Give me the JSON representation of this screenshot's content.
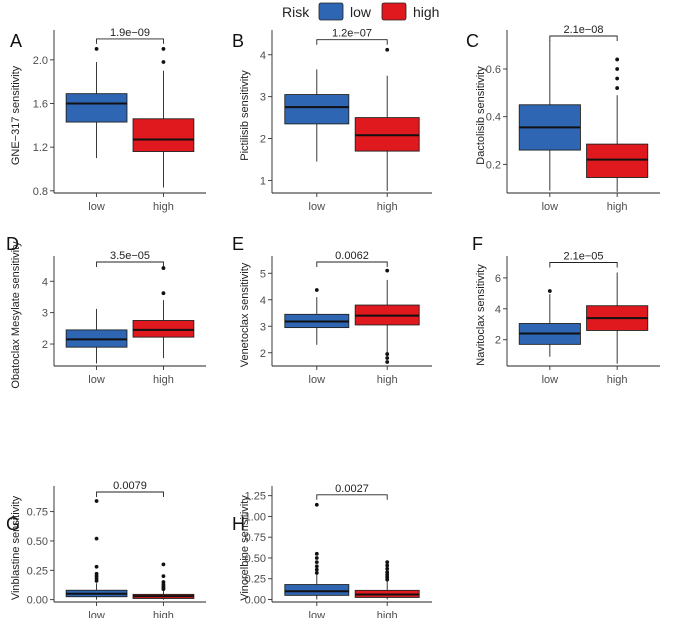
{
  "legend": {
    "title": "Risk",
    "items": [
      {
        "label": "low",
        "color": "#2f66b3"
      },
      {
        "label": "high",
        "color": "#e0191e"
      }
    ]
  },
  "chart_data": [
    {
      "type": "box",
      "letter": "A",
      "ylabel": "GNE−317 sensitivity",
      "categories": [
        "low",
        "high"
      ],
      "ylim": [
        0.78,
        2.2
      ],
      "yticks": [
        0.8,
        1.2,
        1.6,
        2.0
      ],
      "ytick_labels": [
        "0.8",
        "1.2",
        "1.6",
        "2.0"
      ],
      "pvalue": "1.9e−09",
      "boxes": [
        {
          "q1": 1.43,
          "median": 1.6,
          "q3": 1.69,
          "whisker_low": 1.1,
          "whisker_high": 1.98,
          "outliers": [
            2.1
          ]
        },
        {
          "q1": 1.16,
          "median": 1.27,
          "q3": 1.46,
          "whisker_low": 0.83,
          "whisker_high": 1.9,
          "outliers": [
            1.98,
            2.1
          ]
        }
      ]
    },
    {
      "type": "box",
      "letter": "B",
      "ylabel": "Pictilisib sensitivity",
      "categories": [
        "low",
        "high"
      ],
      "ylim": [
        0.7,
        4.4
      ],
      "yticks": [
        1,
        2,
        3,
        4
      ],
      "ytick_labels": [
        "1",
        "2",
        "3",
        "4"
      ],
      "pvalue": "1.2e−07",
      "boxes": [
        {
          "q1": 2.35,
          "median": 2.75,
          "q3": 3.05,
          "whisker_low": 1.45,
          "whisker_high": 3.65,
          "outliers": []
        },
        {
          "q1": 1.7,
          "median": 2.08,
          "q3": 2.5,
          "whisker_low": 0.75,
          "whisker_high": 3.5,
          "outliers": [
            4.12
          ]
        }
      ]
    },
    {
      "type": "box",
      "letter": "C",
      "ylabel": "Dactolisib sensitivity",
      "categories": [
        "low",
        "high"
      ],
      "ylim": [
        0.08,
        0.73
      ],
      "yticks": [
        0.2,
        0.4,
        0.6
      ],
      "ytick_labels": [
        "0.2",
        "0.4",
        "0.6"
      ],
      "pvalue": "2.1e−08",
      "boxes": [
        {
          "q1": 0.26,
          "median": 0.355,
          "q3": 0.45,
          "whisker_low": 0.09,
          "whisker_high": 0.72,
          "outliers": []
        },
        {
          "q1": 0.145,
          "median": 0.22,
          "q3": 0.285,
          "whisker_low": 0.085,
          "whisker_high": 0.49,
          "outliers": [
            0.52,
            0.56,
            0.6,
            0.64
          ]
        }
      ]
    },
    {
      "type": "box",
      "letter": "D",
      "ylabel": "Obatoclax Mesylate sensitivity",
      "categories": [
        "low",
        "high"
      ],
      "ylim": [
        1.3,
        4.55
      ],
      "yticks": [
        2,
        3,
        4
      ],
      "ytick_labels": [
        "2",
        "3",
        "4"
      ],
      "pvalue": "3.5e−05",
      "boxes": [
        {
          "q1": 1.9,
          "median": 2.15,
          "q3": 2.45,
          "whisker_low": 1.38,
          "whisker_high": 3.12,
          "outliers": []
        },
        {
          "q1": 2.22,
          "median": 2.45,
          "q3": 2.75,
          "whisker_low": 1.55,
          "whisker_high": 3.4,
          "outliers": [
            3.62,
            4.42
          ]
        }
      ]
    },
    {
      "type": "box",
      "letter": "E",
      "ylabel": "Venetoclax sensitivity",
      "categories": [
        "low",
        "high"
      ],
      "ylim": [
        1.5,
        5.35
      ],
      "yticks": [
        2,
        3,
        4,
        5
      ],
      "ytick_labels": [
        "2",
        "3",
        "4",
        "5"
      ],
      "pvalue": "0.0062",
      "boxes": [
        {
          "q1": 2.95,
          "median": 3.18,
          "q3": 3.45,
          "whisker_low": 2.3,
          "whisker_high": 4.1,
          "outliers": [
            4.37
          ]
        },
        {
          "q1": 3.05,
          "median": 3.4,
          "q3": 3.8,
          "whisker_low": 2.0,
          "whisker_high": 4.75,
          "outliers": [
            5.1,
            1.65,
            1.8,
            1.95
          ]
        }
      ]
    },
    {
      "type": "box",
      "letter": "F",
      "ylabel": "Navitoclax sensitivity",
      "categories": [
        "low",
        "high"
      ],
      "ylim": [
        0.3,
        6.9
      ],
      "yticks": [
        2,
        4,
        6
      ],
      "ytick_labels": [
        "2",
        "4",
        "6"
      ],
      "pvalue": "2.1e−05",
      "boxes": [
        {
          "q1": 1.7,
          "median": 2.4,
          "q3": 3.05,
          "whisker_low": 0.9,
          "whisker_high": 4.95,
          "outliers": [
            5.15
          ]
        },
        {
          "q1": 2.6,
          "median": 3.4,
          "q3": 4.2,
          "whisker_low": 0.45,
          "whisker_high": 6.35,
          "outliers": []
        }
      ]
    },
    {
      "type": "box",
      "letter": "G",
      "ylabel": "Vinblastine sensitivity",
      "categories": [
        "low",
        "high"
      ],
      "ylim": [
        -0.02,
        0.9
      ],
      "yticks": [
        0.0,
        0.25,
        0.5,
        0.75
      ],
      "ytick_labels": [
        "0.00",
        "0.25",
        "0.50",
        "0.75"
      ],
      "pvalue": "0.0079",
      "boxes": [
        {
          "q1": 0.025,
          "median": 0.05,
          "q3": 0.08,
          "whisker_low": 0.0,
          "whisker_high": 0.14,
          "outliers": [
            0.16,
            0.18,
            0.2,
            0.22,
            0.28,
            0.52,
            0.84
          ]
        },
        {
          "q1": 0.01,
          "median": 0.03,
          "q3": 0.045,
          "whisker_low": 0.0,
          "whisker_high": 0.08,
          "outliers": [
            0.09,
            0.1,
            0.115,
            0.13,
            0.15,
            0.2,
            0.3
          ]
        }
      ]
    },
    {
      "type": "box",
      "letter": "H",
      "ylabel": "Vinorelbine sensitivity",
      "categories": [
        "low",
        "high"
      ],
      "ylim": [
        -0.03,
        1.27
      ],
      "yticks": [
        0.0,
        0.25,
        0.5,
        0.75,
        1.0,
        1.25
      ],
      "ytick_labels": [
        "0.00",
        "0.25",
        "0.50",
        "0.75",
        "1.00",
        "1.25"
      ],
      "pvalue": "0.0027",
      "boxes": [
        {
          "q1": 0.05,
          "median": 0.1,
          "q3": 0.18,
          "whisker_low": 0.0,
          "whisker_high": 0.3,
          "outliers": [
            0.32,
            0.36,
            0.4,
            0.45,
            0.5,
            0.55,
            1.14
          ]
        },
        {
          "q1": 0.025,
          "median": 0.06,
          "q3": 0.11,
          "whisker_low": 0.0,
          "whisker_high": 0.22,
          "outliers": [
            0.24,
            0.27,
            0.3,
            0.33,
            0.37,
            0.41,
            0.45
          ]
        }
      ]
    }
  ]
}
